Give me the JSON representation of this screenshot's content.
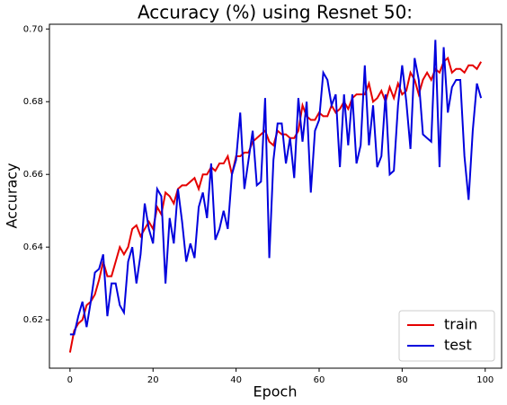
{
  "chart_data": {
    "type": "line",
    "title": "Accuracy (%) using Resnet 50:",
    "xlabel": "Epoch",
    "ylabel": "Accuracy",
    "x": [
      0,
      1,
      2,
      3,
      4,
      5,
      6,
      7,
      8,
      9,
      10,
      11,
      12,
      13,
      14,
      15,
      16,
      17,
      18,
      19,
      20,
      21,
      22,
      23,
      24,
      25,
      26,
      27,
      28,
      29,
      30,
      31,
      32,
      33,
      34,
      35,
      36,
      37,
      38,
      39,
      40,
      41,
      42,
      43,
      44,
      45,
      46,
      47,
      48,
      49,
      50,
      51,
      52,
      53,
      54,
      55,
      56,
      57,
      58,
      59,
      60,
      61,
      62,
      63,
      64,
      65,
      66,
      67,
      68,
      69,
      70,
      71,
      72,
      73,
      74,
      75,
      76,
      77,
      78,
      79,
      80,
      81,
      82,
      83,
      84,
      85,
      86,
      87,
      88,
      89,
      90,
      91,
      92,
      93,
      94,
      95,
      96,
      97,
      98,
      99
    ],
    "series": [
      {
        "name": "train",
        "color": "#e50000",
        "values": [
          0.611,
          0.617,
          0.619,
          0.62,
          0.624,
          0.625,
          0.627,
          0.631,
          0.636,
          0.632,
          0.632,
          0.636,
          0.64,
          0.638,
          0.64,
          0.645,
          0.646,
          0.643,
          0.645,
          0.647,
          0.645,
          0.651,
          0.649,
          0.655,
          0.654,
          0.652,
          0.656,
          0.657,
          0.657,
          0.658,
          0.659,
          0.656,
          0.66,
          0.66,
          0.662,
          0.661,
          0.663,
          0.663,
          0.665,
          0.66,
          0.665,
          0.665,
          0.666,
          0.666,
          0.669,
          0.67,
          0.671,
          0.672,
          0.669,
          0.668,
          0.672,
          0.671,
          0.671,
          0.67,
          0.67,
          0.672,
          0.679,
          0.676,
          0.675,
          0.675,
          0.677,
          0.676,
          0.676,
          0.679,
          0.677,
          0.678,
          0.68,
          0.678,
          0.681,
          0.682,
          0.682,
          0.682,
          0.685,
          0.68,
          0.681,
          0.683,
          0.68,
          0.684,
          0.681,
          0.685,
          0.682,
          0.683,
          0.688,
          0.686,
          0.682,
          0.686,
          0.688,
          0.686,
          0.689,
          0.688,
          0.691,
          0.692,
          0.688,
          0.689,
          0.689,
          0.688,
          0.69,
          0.69,
          0.689,
          0.691
        ]
      },
      {
        "name": "test",
        "color": "#0000dd",
        "values": [
          0.616,
          0.616,
          0.621,
          0.625,
          0.618,
          0.625,
          0.633,
          0.634,
          0.638,
          0.621,
          0.63,
          0.63,
          0.624,
          0.622,
          0.636,
          0.64,
          0.63,
          0.638,
          0.652,
          0.645,
          0.641,
          0.656,
          0.654,
          0.63,
          0.648,
          0.641,
          0.656,
          0.647,
          0.636,
          0.641,
          0.637,
          0.651,
          0.655,
          0.648,
          0.663,
          0.642,
          0.645,
          0.65,
          0.645,
          0.66,
          0.664,
          0.677,
          0.656,
          0.664,
          0.672,
          0.657,
          0.658,
          0.681,
          0.637,
          0.664,
          0.674,
          0.674,
          0.663,
          0.67,
          0.659,
          0.681,
          0.669,
          0.68,
          0.655,
          0.672,
          0.675,
          0.688,
          0.686,
          0.679,
          0.682,
          0.662,
          0.682,
          0.668,
          0.682,
          0.663,
          0.668,
          0.69,
          0.668,
          0.679,
          0.662,
          0.665,
          0.682,
          0.66,
          0.661,
          0.679,
          0.69,
          0.68,
          0.667,
          0.692,
          0.686,
          0.671,
          0.67,
          0.669,
          0.697,
          0.662,
          0.695,
          0.677,
          0.684,
          0.686,
          0.686,
          0.665,
          0.653,
          0.672,
          0.685,
          0.681
        ]
      }
    ],
    "xlim": [
      -4.95,
      103.95
    ],
    "xticks": [
      0,
      20,
      40,
      60,
      80,
      100
    ],
    "ylim": [
      0.6067,
      0.7013
    ],
    "yticks": [
      0.62,
      0.64,
      0.66,
      0.68,
      {
        "value": 0.7,
        "label": "0.70"
      }
    ],
    "legend": "lower right"
  }
}
